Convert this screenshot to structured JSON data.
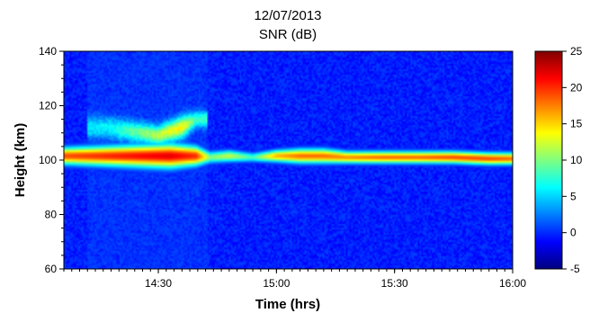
{
  "chart_data": {
    "type": "heatmap",
    "title": "12/07/2013",
    "subtitle": "SNR (dB)",
    "xlabel": "Time (hrs)",
    "ylabel": "Height (km)",
    "x_range_hours": [
      14.1,
      16.0
    ],
    "x_tick_values": [
      14.5,
      15.0,
      15.5,
      16.0
    ],
    "x_tick_labels": [
      "14:30",
      "15:00",
      "15:30",
      "16:00"
    ],
    "y_range": [
      60,
      140
    ],
    "y_ticks": [
      60,
      80,
      100,
      120,
      140
    ],
    "colorbar": {
      "min": -5,
      "max": 25,
      "ticks": [
        -5,
        0,
        5,
        10,
        15,
        20,
        25
      ],
      "colormap": "jet",
      "background_color": "#1a1ab0"
    },
    "features": {
      "main_layer": {
        "description_values": "height (km) vs time (hrs) with peak SNR (dB)",
        "points": [
          {
            "t": 14.1,
            "h": 101.5,
            "width": 3.5,
            "snr": 21
          },
          {
            "t": 14.25,
            "h": 101.5,
            "width": 4.0,
            "snr": 22
          },
          {
            "t": 14.4,
            "h": 101.5,
            "width": 4.5,
            "snr": 23
          },
          {
            "t": 14.55,
            "h": 101.5,
            "width": 5.0,
            "snr": 24
          },
          {
            "t": 14.66,
            "h": 101.5,
            "width": 4.0,
            "snr": 22
          },
          {
            "t": 14.72,
            "h": 101.0,
            "width": 2.5,
            "snr": 12
          },
          {
            "t": 14.8,
            "h": 101.5,
            "width": 2.5,
            "snr": 14
          },
          {
            "t": 14.9,
            "h": 101.0,
            "width": 2.0,
            "snr": 10
          },
          {
            "t": 15.0,
            "h": 101.5,
            "width": 2.5,
            "snr": 18
          },
          {
            "t": 15.1,
            "h": 101.5,
            "width": 3.0,
            "snr": 20
          },
          {
            "t": 15.2,
            "h": 101.5,
            "width": 3.0,
            "snr": 20
          },
          {
            "t": 15.3,
            "h": 101.0,
            "width": 2.5,
            "snr": 19
          },
          {
            "t": 15.45,
            "h": 101.0,
            "width": 2.5,
            "snr": 20
          },
          {
            "t": 15.6,
            "h": 101.0,
            "width": 2.5,
            "snr": 20
          },
          {
            "t": 15.75,
            "h": 101.0,
            "width": 2.5,
            "snr": 21
          },
          {
            "t": 15.9,
            "h": 100.5,
            "width": 2.5,
            "snr": 21
          },
          {
            "t": 16.0,
            "h": 100.5,
            "width": 2.5,
            "snr": 20
          }
        ]
      },
      "upper_layer": {
        "points": [
          {
            "t": 14.28,
            "h": 112.0,
            "width": 4.0,
            "snr": 6
          },
          {
            "t": 14.5,
            "h": 109.0,
            "width": 3.5,
            "snr": 12
          },
          {
            "t": 14.6,
            "h": 112.0,
            "width": 4.0,
            "snr": 14
          },
          {
            "t": 14.66,
            "h": 115.0,
            "width": 3.0,
            "snr": 8
          }
        ]
      }
    }
  }
}
